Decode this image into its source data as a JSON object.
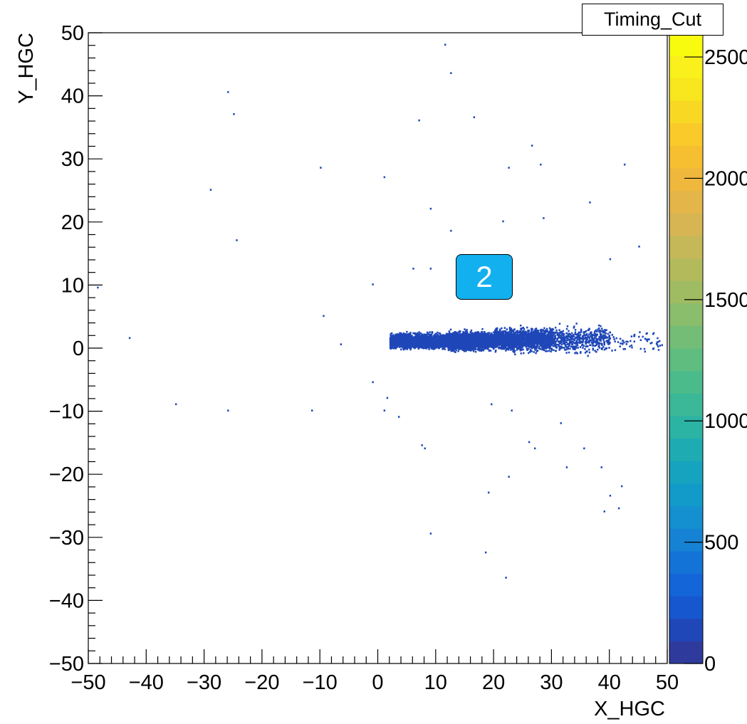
{
  "chart_data": {
    "type": "heatmap",
    "title": "Timing_Cut",
    "xlabel": "X_HGC",
    "ylabel": "Y_HGC",
    "xlim": [
      -50,
      50
    ],
    "ylim": [
      -50,
      50
    ],
    "x_ticks": [
      "−50",
      "−40",
      "−30",
      "−20",
      "−10",
      "0",
      "10",
      "20",
      "30",
      "40",
      "50"
    ],
    "y_ticks": [
      "−50",
      "−40",
      "−30",
      "−20",
      "−10",
      "0",
      "10",
      "20",
      "30",
      "40",
      "50"
    ],
    "colorbar": {
      "range": [
        0,
        2600
      ],
      "tick_labels": [
        "0",
        "500",
        "1000",
        "1500",
        "2000",
        "2500"
      ],
      "tick_values": [
        0,
        500,
        1000,
        1500,
        2000,
        2500
      ],
      "colors": [
        "#2f3b9c",
        "#1f47b8",
        "#1657cf",
        "#1465d8",
        "#1473d6",
        "#1682d3",
        "#148fd0",
        "#129bc9",
        "#16a3c0",
        "#1eacb2",
        "#2bb3a4",
        "#3ab897",
        "#4cbb8b",
        "#5fbd80",
        "#74bd76",
        "#8abd6c",
        "#9fbc63",
        "#b3ba5c",
        "#c5b858",
        "#d6b552",
        "#e4b548",
        "#efb83c",
        "#f6bf32",
        "#f9ca2a",
        "#f9d824",
        "#f8e61f",
        "#f9f01c",
        "#f9fb0e"
      ]
    },
    "clusters": [
      {
        "x_range": [
          2,
          12
        ],
        "y_range": [
          -1,
          3
        ],
        "density": "very high",
        "approx_count": 2600
      },
      {
        "x_range": [
          12,
          20
        ],
        "y_range": [
          -1.5,
          3.5
        ],
        "density": "very high",
        "approx_count": 2600
      },
      {
        "x_range": [
          20,
          30
        ],
        "y_range": [
          -2,
          4.5
        ],
        "density": "medium",
        "approx_count": 1600
      },
      {
        "x_range": [
          30,
          40
        ],
        "y_range": [
          -2.5,
          5
        ],
        "density": "low",
        "approx_count": 500
      },
      {
        "x_range": [
          40,
          49
        ],
        "y_range": [
          -2,
          4
        ],
        "density": "sparse",
        "approx_count": 60
      }
    ],
    "outliers": [
      [
        -26,
        40.5
      ],
      [
        -25,
        37
      ],
      [
        -29,
        25
      ],
      [
        -24.5,
        17
      ],
      [
        -10,
        28.5
      ],
      [
        1,
        27
      ],
      [
        7,
        36
      ],
      [
        11.5,
        48
      ],
      [
        12.5,
        43.5
      ],
      [
        16.5,
        36.5
      ],
      [
        22.5,
        28.5
      ],
      [
        26.5,
        32
      ],
      [
        28,
        29
      ],
      [
        9,
        22
      ],
      [
        12.5,
        18.5
      ],
      [
        21.5,
        20
      ],
      [
        28.5,
        20.5
      ],
      [
        36.5,
        23
      ],
      [
        42.5,
        29
      ],
      [
        45,
        16
      ],
      [
        40,
        14
      ],
      [
        6,
        12.5
      ],
      [
        9,
        12.5
      ],
      [
        -48.5,
        9.5
      ],
      [
        -1,
        10
      ],
      [
        -9.5,
        5
      ],
      [
        -6.5,
        0.5
      ],
      [
        -43,
        1.5
      ],
      [
        -1,
        -5.5
      ],
      [
        1.5,
        -8
      ],
      [
        -35,
        -9
      ],
      [
        -26,
        -10
      ],
      [
        -11.5,
        -10
      ],
      [
        1,
        -10
      ],
      [
        3.5,
        -11
      ],
      [
        7.5,
        -15.5
      ],
      [
        8,
        -16
      ],
      [
        19.5,
        -9
      ],
      [
        23,
        -10
      ],
      [
        26,
        -15
      ],
      [
        27,
        -16
      ],
      [
        31.5,
        -12
      ],
      [
        35.5,
        -16
      ],
      [
        38.5,
        -19
      ],
      [
        42,
        -22
      ],
      [
        40,
        -23.5
      ],
      [
        39,
        -26
      ],
      [
        41.5,
        -25.5
      ],
      [
        19,
        -23
      ],
      [
        22.5,
        -20.5
      ],
      [
        9,
        -29.5
      ],
      [
        18.5,
        -32.5
      ],
      [
        22,
        -36.5
      ],
      [
        32.5,
        -19
      ]
    ],
    "annotation_label": "2"
  }
}
